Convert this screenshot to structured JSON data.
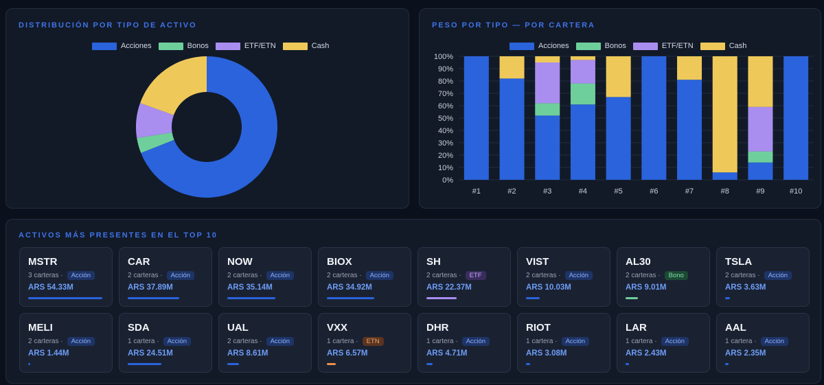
{
  "colors": {
    "accent": "#3f73e6",
    "acciones": "#2a63dc",
    "bonos": "#6fcf9c",
    "etf": "#a98ef0",
    "cash": "#eec95a",
    "etn": "#f08c4a"
  },
  "donut_panel": {
    "title": "DISTRIBUCIÓN POR TIPO DE ACTIVO"
  },
  "stack_panel": {
    "title": "PESO POR TIPO — POR CARTERA"
  },
  "assets_panel": {
    "title": "ACTIVOS MÁS PRESENTES EN EL TOP 10"
  },
  "chart_data": [
    {
      "type": "pie",
      "variant": "donut",
      "title": "DISTRIBUCIÓN POR TIPO DE ACTIVO",
      "legend_position": "top",
      "categories": [
        "Acciones",
        "Bonos",
        "ETF/ETN",
        "Cash"
      ],
      "values": [
        69,
        3.5,
        8,
        19.5
      ]
    },
    {
      "type": "bar",
      "stacked": true,
      "title": "PESO POR TIPO — POR CARTERA",
      "legend_position": "top",
      "categories": [
        "#1",
        "#2",
        "#3",
        "#4",
        "#5",
        "#6",
        "#7",
        "#8",
        "#9",
        "#10"
      ],
      "series": [
        {
          "name": "Acciones",
          "values": [
            100,
            82,
            52,
            61,
            67,
            100,
            81,
            6,
            14,
            100
          ]
        },
        {
          "name": "Bonos",
          "values": [
            0,
            0,
            10,
            17,
            0,
            0,
            0,
            0,
            9,
            0
          ]
        },
        {
          "name": "ETF/ETN",
          "values": [
            0,
            0,
            33,
            19,
            0,
            0,
            0,
            0,
            36,
            0
          ]
        },
        {
          "name": "Cash",
          "values": [
            0,
            18,
            5,
            3,
            33,
            0,
            19,
            94,
            41,
            0
          ]
        }
      ],
      "ylim": [
        0,
        100
      ],
      "yticks": [
        "0%",
        "10%",
        "20%",
        "30%",
        "40%",
        "50%",
        "60%",
        "70%",
        "80%",
        "90%",
        "100%"
      ],
      "grid": true
    }
  ],
  "assets": [
    {
      "ticker": "MSTR",
      "count": "3 carteras ·",
      "type": "Acción",
      "value": "ARS 54.33M",
      "amount": 54.33
    },
    {
      "ticker": "CAR",
      "count": "2 carteras ·",
      "type": "Acción",
      "value": "ARS 37.89M",
      "amount": 37.89
    },
    {
      "ticker": "NOW",
      "count": "2 carteras ·",
      "type": "Acción",
      "value": "ARS 35.14M",
      "amount": 35.14
    },
    {
      "ticker": "BIOX",
      "count": "2 carteras ·",
      "type": "Acción",
      "value": "ARS 34.92M",
      "amount": 34.92
    },
    {
      "ticker": "SH",
      "count": "2 carteras ·",
      "type": "ETF",
      "value": "ARS 22.37M",
      "amount": 22.37
    },
    {
      "ticker": "VIST",
      "count": "2 carteras ·",
      "type": "Acción",
      "value": "ARS 10.03M",
      "amount": 10.03
    },
    {
      "ticker": "AL30",
      "count": "2 carteras ·",
      "type": "Bono",
      "value": "ARS 9.01M",
      "amount": 9.01
    },
    {
      "ticker": "TSLA",
      "count": "2 carteras ·",
      "type": "Acción",
      "value": "ARS 3.63M",
      "amount": 3.63
    },
    {
      "ticker": "MELI",
      "count": "2 carteras ·",
      "type": "Acción",
      "value": "ARS 1.44M",
      "amount": 1.44
    },
    {
      "ticker": "SDA",
      "count": "1 cartera ·",
      "type": "Acción",
      "value": "ARS 24.51M",
      "amount": 24.51
    },
    {
      "ticker": "UAL",
      "count": "2 carteras ·",
      "type": "Acción",
      "value": "ARS 8.61M",
      "amount": 8.61
    },
    {
      "ticker": "VXX",
      "count": "1 cartera ·",
      "type": "ETN",
      "value": "ARS 6.57M",
      "amount": 6.57
    },
    {
      "ticker": "DHR",
      "count": "1 cartera ·",
      "type": "Acción",
      "value": "ARS 4.71M",
      "amount": 4.71
    },
    {
      "ticker": "RIOT",
      "count": "1 cartera ·",
      "type": "Acción",
      "value": "ARS 3.08M",
      "amount": 3.08
    },
    {
      "ticker": "LAR",
      "count": "1 cartera ·",
      "type": "Acción",
      "value": "ARS 2.43M",
      "amount": 2.43
    },
    {
      "ticker": "AAL",
      "count": "1 cartera ·",
      "type": "Acción",
      "value": "ARS 2.35M",
      "amount": 2.35
    }
  ]
}
